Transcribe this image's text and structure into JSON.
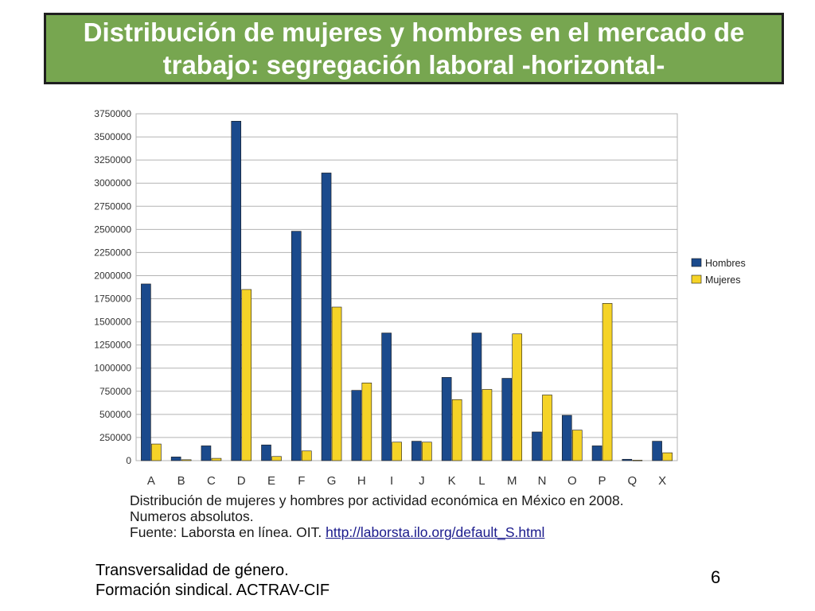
{
  "header": {
    "title": "Distribución de mujeres y hombres en el mercado de trabajo: segregación laboral -horizontal-"
  },
  "chart_data": {
    "type": "bar",
    "categories": [
      "A",
      "B",
      "C",
      "D",
      "E",
      "F",
      "G",
      "H",
      "I",
      "J",
      "K",
      "L",
      "M",
      "N",
      "O",
      "P",
      "Q",
      "X"
    ],
    "series": [
      {
        "name": "Hombres",
        "color": "#1b4a8c",
        "values": [
          1910000,
          40000,
          160000,
          3670000,
          170000,
          2480000,
          3110000,
          760000,
          1380000,
          210000,
          900000,
          1380000,
          890000,
          310000,
          490000,
          160000,
          15000,
          210000
        ]
      },
      {
        "name": "Mujeres",
        "color": "#f5d327",
        "values": [
          180000,
          10000,
          25000,
          1850000,
          45000,
          105000,
          1660000,
          840000,
          200000,
          200000,
          660000,
          770000,
          1370000,
          710000,
          330000,
          1700000,
          5000,
          85000
        ]
      }
    ],
    "yticks": [
      "3750000",
      "3500000",
      "3250000",
      "3000000",
      "2750000",
      "2500000",
      "2250000",
      "2000000",
      "1750000",
      "1500000",
      "1250000",
      "1000000",
      "750000",
      "500000",
      "250000",
      "0"
    ],
    "ylim": [
      0,
      3750000
    ],
    "grid": true,
    "legend_position": "right"
  },
  "caption": {
    "line1": "Distribución de mujeres y hombres por actividad económica en México en 2008.",
    "line2": "Numeros absolutos.",
    "source_prefix": "Fuente: Laborsta en línea. OIT. ",
    "source_link": "http://laborsta.ilo.org/default_S.html"
  },
  "footer": {
    "line1": "Transversalidad de género.",
    "line2": "Formación sindical. ACTRAV-CIF",
    "page_number": "6"
  }
}
